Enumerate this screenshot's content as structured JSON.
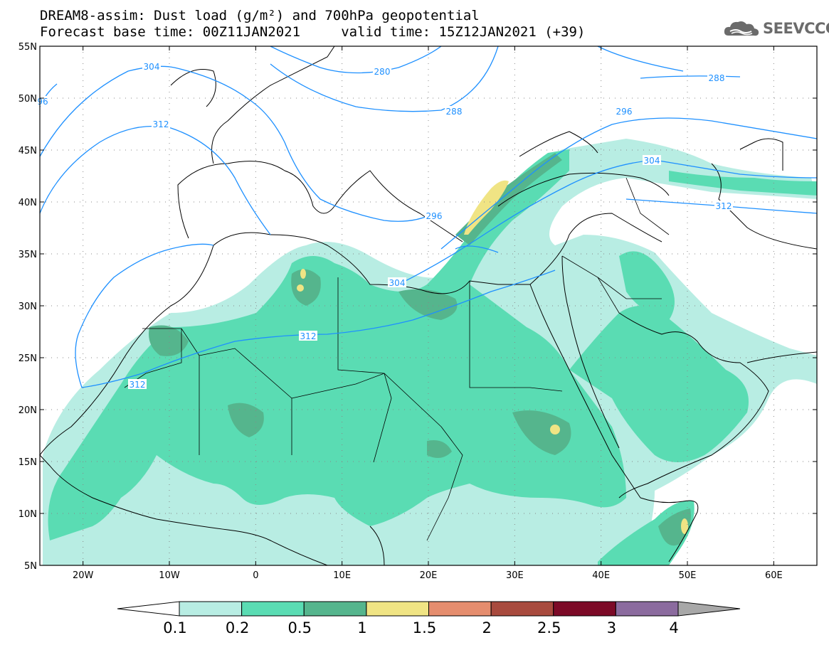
{
  "title": {
    "line1": "DREAM8-assim: Dust load (g/m²) and 700hPa geopotential",
    "line2": "Forecast base time: 00Z11JAN2021     valid time: 15Z12JAN2021 (+39)"
  },
  "logo": {
    "text": "SEEVCCC",
    "icon": "cloud-icon"
  },
  "map": {
    "lon_range": [
      -25,
      65
    ],
    "lat_range": [
      5,
      55
    ],
    "lat_labels": [
      "55N",
      "50N",
      "45N",
      "40N",
      "35N",
      "30N",
      "25N",
      "20N",
      "15N",
      "10N",
      "5N"
    ],
    "lon_labels": [
      "20W",
      "10W",
      "0",
      "10E",
      "20E",
      "30E",
      "40E",
      "50E",
      "60E"
    ],
    "contour_labels": [
      "304",
      "280",
      "288",
      "288",
      "296",
      "304",
      "312",
      "312",
      "312",
      "304",
      "296",
      "312",
      "96"
    ],
    "colors": {
      "contour": "#1e90ff",
      "coast": "#000000"
    }
  },
  "colorbar": {
    "labels": [
      "0.1",
      "0.2",
      "0.5",
      "1",
      "1.5",
      "2",
      "2.5",
      "3",
      "4"
    ],
    "colors": [
      "#b8ede3",
      "#5adcb3",
      "#55b58d",
      "#f0e484",
      "#e58d6e",
      "#a84a3e",
      "#7c0a27",
      "#8b6b9e",
      "#a8a8a8"
    ],
    "under_color": "#ffffff"
  }
}
